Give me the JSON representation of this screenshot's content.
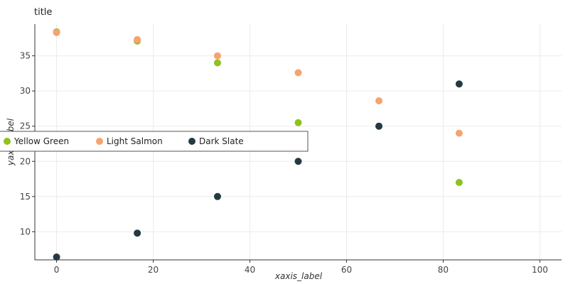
{
  "chart_data": {
    "type": "scatter",
    "title": "title",
    "xlabel": "xaxis_label",
    "ylabel": "yaxis_label",
    "xlim": [
      -4.5,
      104.5
    ],
    "ylim": [
      6.0,
      39.5
    ],
    "x_ticks": [
      0,
      20,
      40,
      60,
      80,
      100
    ],
    "y_ticks": [
      10,
      15,
      20,
      25,
      30,
      35
    ],
    "grid": true,
    "legend_position": "left",
    "series": [
      {
        "name": "Yellow Green",
        "color": "#8dc21f",
        "points": [
          [
            0,
            38.4
          ],
          [
            16.7,
            37.1
          ],
          [
            33.3,
            34.0
          ],
          [
            50,
            25.5
          ],
          [
            66.7,
            25.0
          ],
          [
            83.3,
            17.0
          ]
        ]
      },
      {
        "name": "Light Salmon",
        "color": "#f5a371",
        "points": [
          [
            0,
            38.3
          ],
          [
            16.7,
            37.3
          ],
          [
            33.3,
            35.0
          ],
          [
            50,
            32.6
          ],
          [
            66.7,
            28.6
          ],
          [
            83.3,
            24.0
          ]
        ]
      },
      {
        "name": "Dark Slate",
        "color": "#233a42",
        "points": [
          [
            0,
            6.4
          ],
          [
            16.7,
            9.8
          ],
          [
            33.3,
            15.0
          ],
          [
            50,
            20.0
          ],
          [
            66.7,
            25.0
          ],
          [
            83.3,
            31.0
          ]
        ]
      }
    ],
    "legend_entries": [
      "Yellow Green",
      "Light Salmon",
      "Dark Slate"
    ]
  }
}
